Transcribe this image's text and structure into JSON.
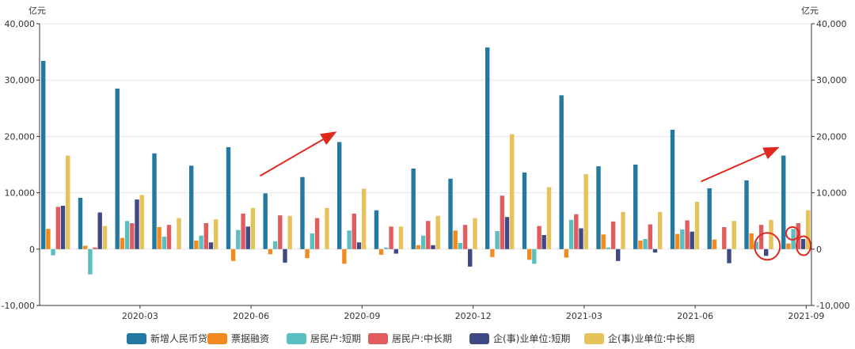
{
  "chart_data": {
    "type": "bar",
    "yunit_left": "亿元",
    "yunit_right": "亿元",
    "ylim": [
      -10000,
      40000
    ],
    "y_ticks": [
      "-10,000",
      "0",
      "10,000",
      "20,000",
      "30,000",
      "40,000"
    ],
    "x_ticks": [
      "2020-03",
      "2020-06",
      "2020-09",
      "2020-12",
      "2021-03",
      "2021-06",
      "2021-09"
    ],
    "categories": [
      "2020-01",
      "2020-02",
      "2020-03",
      "2020-04",
      "2020-05",
      "2020-06",
      "2020-07",
      "2020-08",
      "2020-09",
      "2020-10",
      "2020-11",
      "2020-12",
      "2021-01",
      "2021-02",
      "2021-03",
      "2021-04",
      "2021-05",
      "2021-06",
      "2021-07",
      "2021-08",
      "2021-09"
    ],
    "series": [
      {
        "name": "新增人民币贷款",
        "color": "#2379a0",
        "values": [
          33400,
          9100,
          28500,
          17000,
          14800,
          18100,
          9900,
          12800,
          19000,
          6900,
          14300,
          12500,
          35800,
          13600,
          27300,
          14700,
          15000,
          21200,
          10800,
          12200,
          16600
        ]
      },
      {
        "name": "票据融资",
        "color": "#f28b1f",
        "values": [
          3600,
          600,
          2000,
          3900,
          1500,
          -2100,
          -900,
          -1600,
          -2600,
          -1000,
          700,
          3300,
          -1400,
          -1900,
          -1500,
          2600,
          1500,
          2700,
          1700,
          2800,
          1000
        ]
      },
      {
        "name": "居民户:短期",
        "color": "#5cbfbf",
        "values": [
          -1100,
          -4500,
          5000,
          2200,
          2400,
          3400,
          1400,
          2800,
          3300,
          300,
          2400,
          1100,
          3200,
          -2600,
          5200,
          300,
          1800,
          3500,
          0,
          1300,
          3600
        ]
      },
      {
        "name": "居民户:中长期",
        "color": "#e05c5f",
        "values": [
          7500,
          300,
          4600,
          4300,
          4600,
          6300,
          6000,
          5500,
          6300,
          4000,
          5000,
          4300,
          9500,
          4100,
          6200,
          4900,
          4400,
          5100,
          3900,
          4300,
          4600
        ]
      },
      {
        "name": "企(事)业单位:短期",
        "color": "#3f4a85",
        "values": [
          7700,
          6500,
          8800,
          0,
          1200,
          4000,
          -2400,
          0,
          1200,
          -800,
          700,
          -3100,
          5700,
          2500,
          3700,
          -2100,
          -600,
          3100,
          -2500,
          -1200,
          1800
        ]
      },
      {
        "name": "企(事)业单位:中长期",
        "color": "#e6c25a",
        "values": [
          16600,
          4100,
          9600,
          5500,
          5300,
          7300,
          5900,
          7300,
          10700,
          4000,
          5900,
          5500,
          20400,
          11000,
          13300,
          6600,
          6600,
          8400,
          5000,
          5200,
          6900
        ]
      }
    ],
    "annotations": [
      {
        "type": "arrow",
        "shape": "up-right",
        "color": "#e0281e"
      },
      {
        "type": "arrow",
        "shape": "up-right",
        "color": "#e0281e"
      },
      {
        "type": "circle",
        "color": "#e0281e"
      },
      {
        "type": "circle",
        "color": "#e0281e"
      },
      {
        "type": "circle",
        "color": "#e0281e"
      }
    ]
  }
}
